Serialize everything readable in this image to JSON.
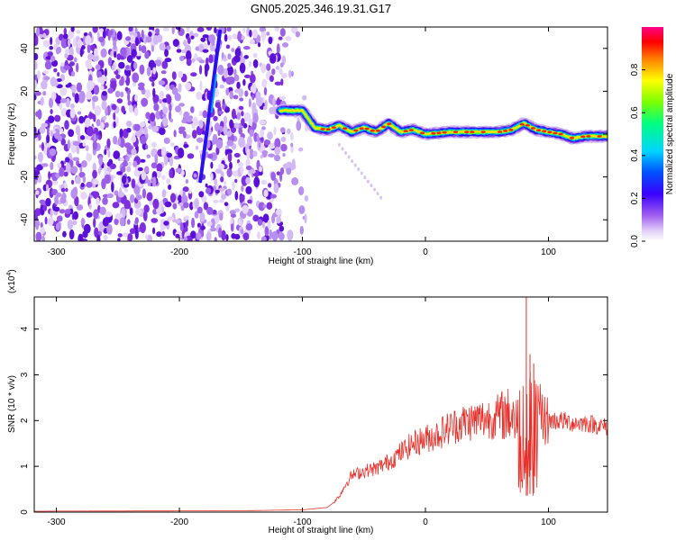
{
  "title": "GN05.2025.346.19.31.G17",
  "chart_data": [
    {
      "type": "heatmap",
      "xlabel": "Height of straight line (km)",
      "ylabel": "Frequency (Hz)",
      "xlim": [
        -318,
        148
      ],
      "ylim": [
        -50,
        50
      ],
      "x_ticks": [
        -300,
        -200,
        -100,
        0,
        100
      ],
      "y_ticks": [
        -40,
        -20,
        0,
        20,
        40
      ],
      "colorbar": {
        "label": "Normalized spectral amplitude",
        "range": [
          0,
          1
        ],
        "ticks": [
          "0.0",
          "0.2",
          "0.4",
          "0.6",
          "0.8"
        ],
        "colors": [
          "#ffffff",
          "#c9a7f5",
          "#8a2be2",
          "#3a00ff",
          "#0044ff",
          "#00d4ff",
          "#00ff80",
          "#7cff00",
          "#ffff00",
          "#ff8000",
          "#ff0000",
          "#ff0088"
        ]
      },
      "ridge": {
        "x": [
          -118,
          -100,
          -90,
          -80,
          -70,
          -60,
          -50,
          -40,
          -30,
          -20,
          -10,
          0,
          20,
          40,
          60,
          70,
          80,
          90,
          100,
          110,
          120,
          130,
          148
        ],
        "y": [
          11,
          11,
          3,
          2,
          4,
          1,
          3,
          1,
          5,
          1,
          2,
          0,
          1,
          1,
          1,
          2,
          5,
          2,
          1,
          0,
          -2,
          -1,
          -1
        ]
      },
      "noise_region_x": [
        -318,
        -102
      ]
    },
    {
      "type": "line",
      "xlabel": "Height of straight line (km)",
      "ylabel": "SNR (10 * v/v)",
      "y_multiplier": "(x10^4)",
      "xlim": [
        -318,
        148
      ],
      "ylim": [
        0,
        4.7
      ],
      "x_ticks": [
        -300,
        -200,
        -100,
        0,
        100
      ],
      "y_ticks": [
        0,
        1,
        2,
        3,
        4
      ],
      "series": [
        {
          "color": "#e8302a",
          "envelope_x": [
            -318,
            -150,
            -100,
            -80,
            -75,
            -70,
            -65,
            -60,
            -50,
            -40,
            -30,
            -20,
            -10,
            0,
            10,
            20,
            30,
            40,
            50,
            60,
            70,
            75,
            80,
            82,
            85,
            90,
            95,
            100,
            110,
            120,
            130,
            140,
            148
          ],
          "envelope_y": [
            0.02,
            0.03,
            0.05,
            0.1,
            0.2,
            0.35,
            0.6,
            0.8,
            0.9,
            0.95,
            1.1,
            1.3,
            1.5,
            1.6,
            1.7,
            1.85,
            1.95,
            2.0,
            2.05,
            2.1,
            2.15,
            2.05,
            2.0,
            1.8,
            2.0,
            2.1,
            2.05,
            2.0,
            2.0,
            1.95,
            1.95,
            1.9,
            1.85
          ],
          "peaks_x": [
            82,
            85,
            88
          ],
          "peaks_y": [
            4.7,
            3.45,
            3.25
          ]
        }
      ]
    }
  ]
}
